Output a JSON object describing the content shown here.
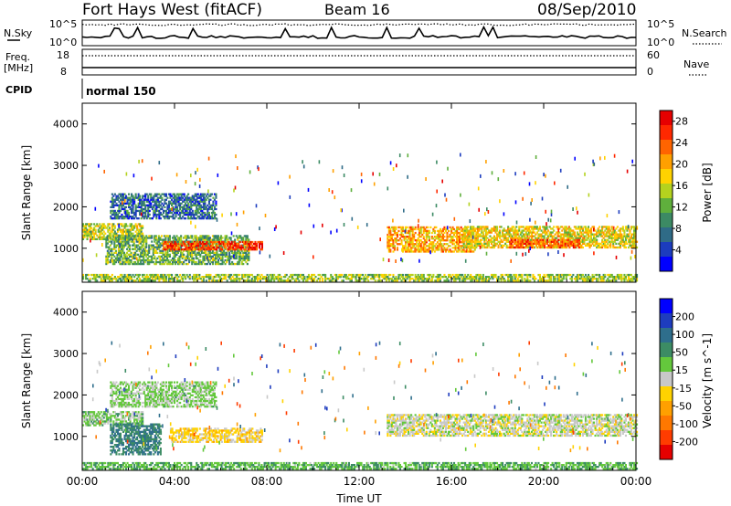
{
  "header": {
    "radar": "Fort Hays West (fitACF)",
    "beam": "Beam 16",
    "date": "08/Sep/2010"
  },
  "summary": {
    "nsky_label": "N.Sky",
    "nsky_ticks": [
      "10^5",
      "10^0"
    ],
    "nsearch_label": "N.Search",
    "nsearch_ticks": [
      "10^5",
      "10^0"
    ],
    "freq_label": "Freq.",
    "freq_unit": "[MHz]",
    "freq_ticks": [
      18,
      8
    ],
    "nave_label": "Nave",
    "nave_ticks": [
      60,
      0
    ],
    "cpid_label": "CPID",
    "cpid_value": "normal 150"
  },
  "colors": {
    "power": [
      "#0000ff",
      "#1c3cbe",
      "#2f6b87",
      "#3c8a64",
      "#5faf3c",
      "#b4d21e",
      "#ffd200",
      "#ffa000",
      "#ff6400",
      "#ff2800",
      "#e60000"
    ],
    "velocity": [
      "#0000ff",
      "#1e3cbe",
      "#2e6e8c",
      "#3c8c64",
      "#64c83c",
      "#c8c8c8",
      "#ffd200",
      "#ffa000",
      "#ff7800",
      "#ff3c00",
      "#e60000"
    ]
  },
  "chart_data": [
    {
      "type": "heatmap",
      "panel": "power",
      "ylabel": "Slant Range [km]",
      "yticks": [
        1000,
        2000,
        3000,
        4000
      ],
      "ylim": [
        180,
        4500
      ],
      "xlim": [
        0,
        24
      ],
      "colorbar_label": "Power [dB]",
      "colorbar_ticks": [
        4,
        8,
        12,
        16,
        20,
        24,
        28
      ],
      "colorbar_range": [
        0,
        30
      ],
      "bands": [
        {
          "t": [
            0,
            2.6
          ],
          "r": [
            1200,
            1600
          ],
          "value": 15
        },
        {
          "t": [
            1.0,
            7.2
          ],
          "r": [
            600,
            1300
          ],
          "value": 12
        },
        {
          "t": [
            1.2,
            5.8
          ],
          "r": [
            1700,
            2300
          ],
          "value": 7
        },
        {
          "t": [
            3.5,
            7.8
          ],
          "r": [
            950,
            1150
          ],
          "value": 26
        },
        {
          "t": [
            13.2,
            17.0
          ],
          "r": [
            900,
            1500
          ],
          "value": 20
        },
        {
          "t": [
            16.5,
            24.0
          ],
          "r": [
            1000,
            1500
          ],
          "value": 17
        },
        {
          "t": [
            18.5,
            21.5
          ],
          "r": [
            1000,
            1200
          ],
          "value": 24
        },
        {
          "t": [
            0,
            24
          ],
          "r": [
            200,
            360
          ],
          "value": 14
        }
      ]
    },
    {
      "type": "heatmap",
      "panel": "velocity",
      "ylabel": "Slant Range [km]",
      "yticks": [
        1000,
        2000,
        3000,
        4000
      ],
      "ylim": [
        180,
        4500
      ],
      "xlim": [
        0,
        24
      ],
      "xticks": [
        "00:00",
        "04:00",
        "08:00",
        "12:00",
        "16:00",
        "20:00",
        "00:00"
      ],
      "xlabel": "Time UT",
      "colorbar_label": "Velocity [m s^-1]",
      "colorbar_ticks": [
        200,
        100,
        50,
        15,
        -15,
        -50,
        -100,
        -200
      ],
      "colorbar_range": [
        -250,
        250
      ],
      "bands": [
        {
          "t": [
            0,
            2.6
          ],
          "r": [
            1250,
            1600
          ],
          "value": -40
        },
        {
          "t": [
            1.2,
            3.4
          ],
          "r": [
            550,
            1300
          ],
          "value": -110
        },
        {
          "t": [
            3.8,
            7.8
          ],
          "r": [
            850,
            1200
          ],
          "value": 40
        },
        {
          "t": [
            1.2,
            5.8
          ],
          "r": [
            1700,
            2300
          ],
          "value": -30
        },
        {
          "t": [
            13.2,
            24.0
          ],
          "r": [
            1000,
            1500
          ],
          "value": 0
        },
        {
          "t": [
            0,
            24
          ],
          "r": [
            200,
            360
          ],
          "value": -60
        }
      ]
    }
  ]
}
